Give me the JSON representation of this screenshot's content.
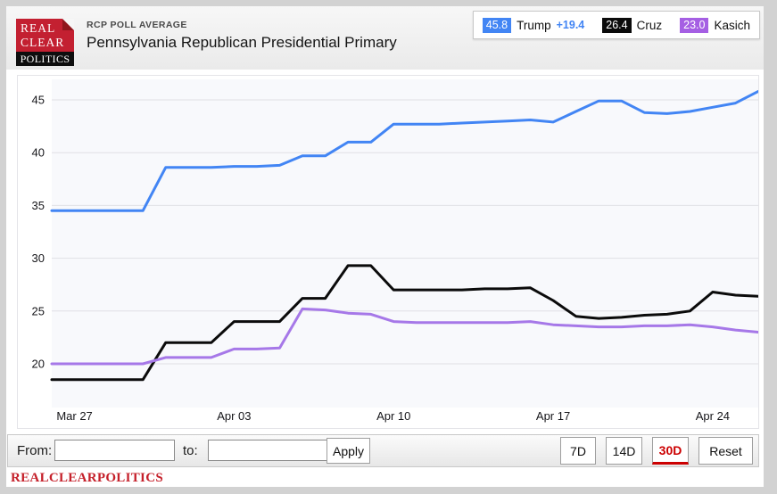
{
  "brand": {
    "logo_line1": "REAL",
    "logo_line2": "CLEAR",
    "logo_line3": "POLITICS",
    "logo_red": "#c32031",
    "footer_wordmark": "REALCLEARPOLITICS"
  },
  "header": {
    "kicker": "RCP POLL AVERAGE",
    "title": "Pennsylvania Republican Presidential Primary"
  },
  "legend": {
    "items": [
      {
        "value": "45.8",
        "label": "Trump",
        "spread": "+19.4",
        "color": "#4285f4"
      },
      {
        "value": "26.4",
        "label": "Cruz",
        "spread": "",
        "color": "#0b0b0b"
      },
      {
        "value": "23.0",
        "label": "Kasich",
        "spread": "",
        "color": "#a55fe3"
      }
    ]
  },
  "chart_data": {
    "type": "line",
    "title": "RCP Poll Average — Pennsylvania Republican Presidential Primary",
    "grid": true,
    "x_range": [
      "Mar 26",
      "Apr 26"
    ],
    "x_ticks": [
      {
        "index": 1,
        "label": "Mar 27"
      },
      {
        "index": 8,
        "label": "Apr 03"
      },
      {
        "index": 15,
        "label": "Apr 10"
      },
      {
        "index": 22,
        "label": "Apr 17"
      },
      {
        "index": 29,
        "label": "Apr 24"
      }
    ],
    "y_axis": {
      "min": 20,
      "max": 45,
      "ticks": [
        45,
        40,
        35,
        30,
        25,
        20
      ]
    },
    "series": [
      {
        "name": "Trump",
        "color": "#4285f4",
        "values": [
          34.5,
          34.5,
          34.5,
          34.5,
          34.5,
          38.6,
          38.6,
          38.6,
          38.7,
          38.7,
          38.8,
          39.7,
          39.7,
          41.0,
          41.0,
          42.7,
          42.7,
          42.7,
          42.8,
          42.9,
          43.0,
          43.1,
          42.9,
          43.9,
          44.9,
          44.9,
          43.8,
          43.7,
          43.9,
          44.3,
          44.7,
          45.8
        ]
      },
      {
        "name": "Cruz",
        "color": "#0b0b0b",
        "values": [
          18.5,
          18.5,
          18.5,
          18.5,
          18.5,
          22.0,
          22.0,
          22.0,
          24.0,
          24.0,
          24.0,
          26.2,
          26.2,
          29.3,
          29.3,
          27.0,
          27.0,
          27.0,
          27.0,
          27.1,
          27.1,
          27.2,
          26.0,
          24.5,
          24.3,
          24.4,
          24.6,
          24.7,
          25.0,
          26.8,
          26.5,
          26.4
        ]
      },
      {
        "name": "Kasich",
        "color": "#a678e8",
        "values": [
          20.0,
          20.0,
          20.0,
          20.0,
          20.0,
          20.6,
          20.6,
          20.6,
          21.4,
          21.4,
          21.5,
          25.2,
          25.1,
          24.8,
          24.7,
          24.0,
          23.9,
          23.9,
          23.9,
          23.9,
          23.9,
          24.0,
          23.7,
          23.6,
          23.5,
          23.5,
          23.6,
          23.6,
          23.7,
          23.5,
          23.2,
          23.0
        ]
      }
    ]
  },
  "controls": {
    "from_label": "From:",
    "to_label": "to:",
    "from_value": "",
    "to_value": "",
    "apply_label": "Apply",
    "range_buttons": [
      {
        "label": "7D",
        "active": false
      },
      {
        "label": "14D",
        "active": false
      },
      {
        "label": "30D",
        "active": true
      },
      {
        "label": "Reset",
        "active": false
      }
    ],
    "active_color": "#cc0001"
  }
}
